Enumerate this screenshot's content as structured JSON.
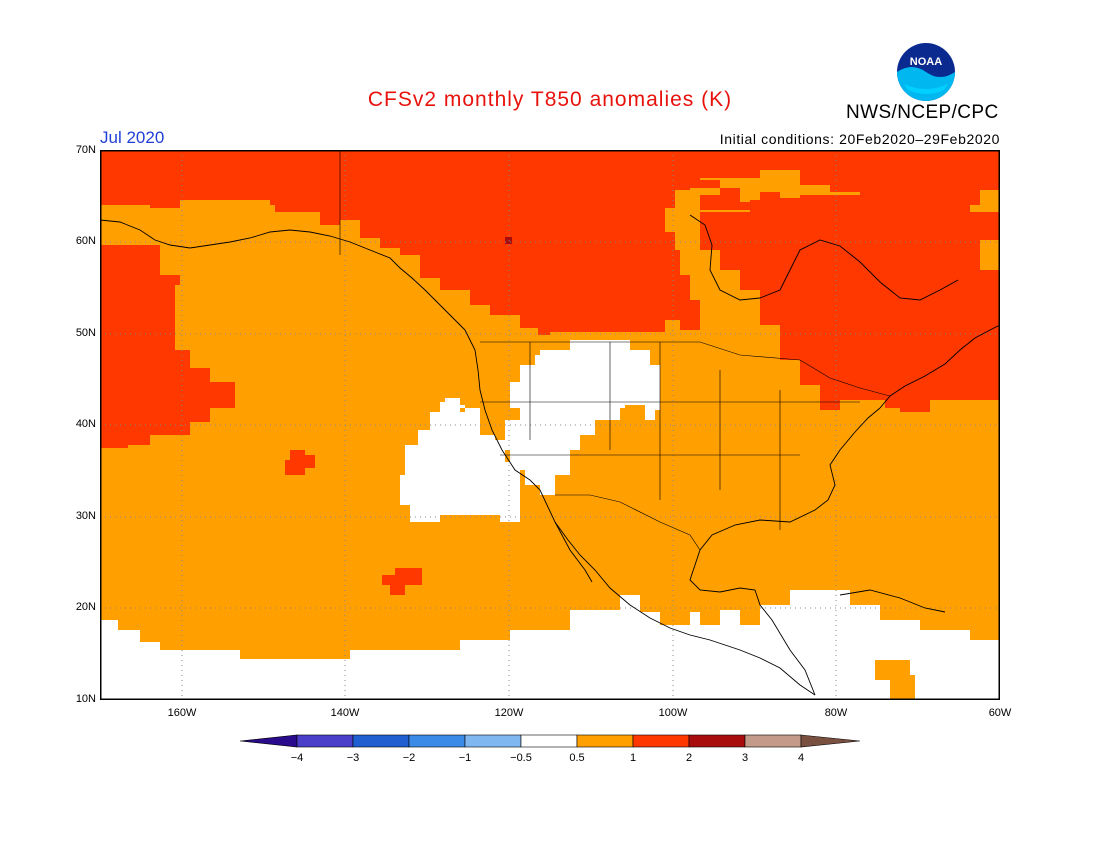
{
  "header": {
    "title": "CFSv2 monthly T850 anomalies (K)",
    "period": "Jul 2020",
    "initial_conditions": "Initial conditions: 20Feb2020–29Feb2020",
    "agency": "NWS/NCEP/CPC",
    "logo_text": "NOAA"
  },
  "map": {
    "lat_labels": [
      "70N",
      "60N",
      "50N",
      "40N",
      "30N",
      "20N",
      "10N"
    ],
    "lon_labels": [
      "160W",
      "140W",
      "120W",
      "100W",
      "80W",
      "60W"
    ],
    "lat_range": [
      10,
      70
    ],
    "lon_range": [
      -170,
      -60
    ]
  },
  "colorbar": {
    "tick_labels": [
      "−4",
      "−3",
      "−2",
      "−1",
      "−0.5",
      "0.5",
      "1",
      "2",
      "3",
      "4"
    ],
    "colors": [
      "#2a0b8c",
      "#4b3fc9",
      "#1f5fd0",
      "#3a8ae8",
      "#7fb8f0",
      "#ffffff",
      "#ff9f00",
      "#ff3800",
      "#a80c0c",
      "#c49a8a",
      "#7a5040"
    ]
  },
  "palette": {
    "orange": "#ff9f00",
    "red": "#ff3800",
    "darkred": "#a80c0c",
    "white": "#ffffff",
    "border": "#000000"
  }
}
